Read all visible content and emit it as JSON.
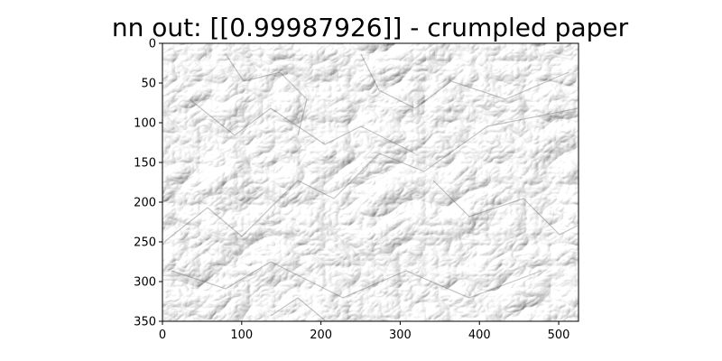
{
  "chart_data": {
    "type": "image",
    "title": "nn out: [[0.99987926]] - crumpled paper",
    "image_subject": "crumpled-paper",
    "colormap": "gray",
    "xlim": [
      0,
      525
    ],
    "ylim": [
      350,
      0
    ],
    "xticks": [
      0,
      100,
      200,
      300,
      400,
      500
    ],
    "yticks": [
      0,
      50,
      100,
      150,
      200,
      250,
      300,
      350
    ],
    "xtick_labels": [
      "0",
      "100",
      "200",
      "300",
      "400",
      "500"
    ],
    "ytick_labels": [
      "0",
      "50",
      "100",
      "150",
      "200",
      "250",
      "300",
      "350"
    ],
    "xlabel": "",
    "ylabel": ""
  }
}
